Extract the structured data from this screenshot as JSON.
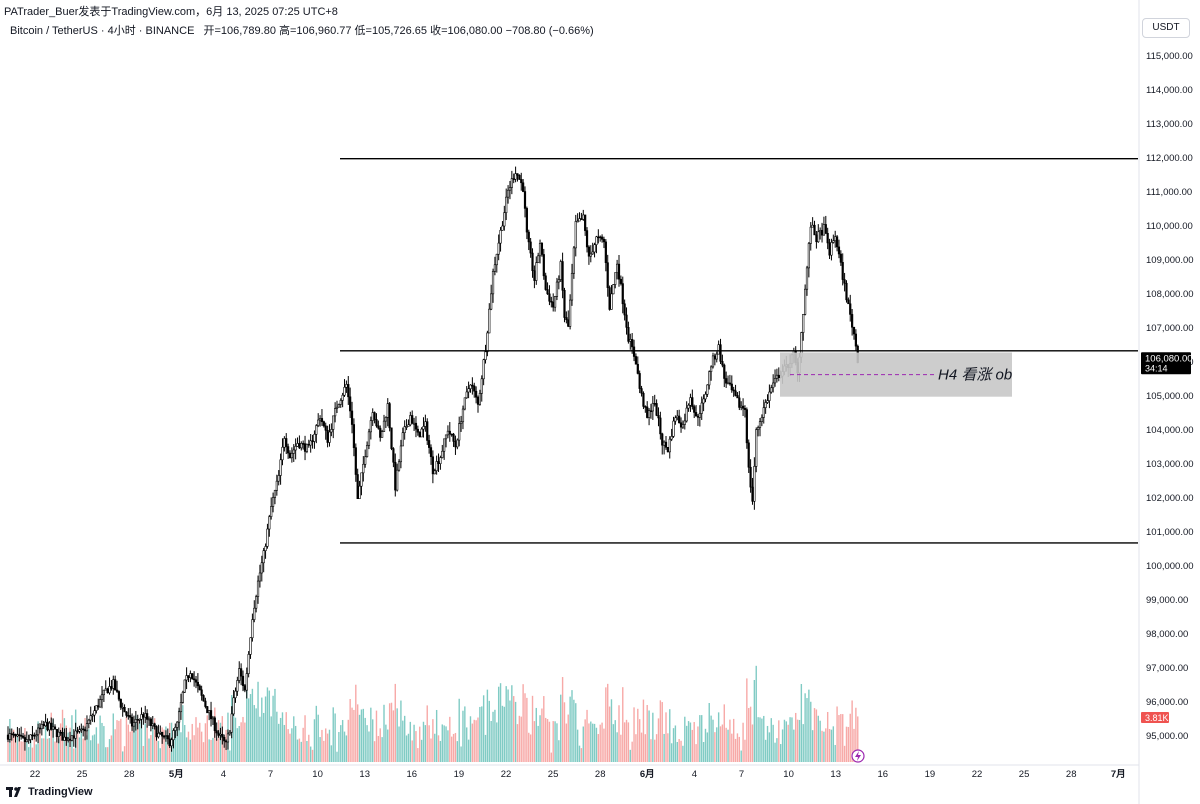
{
  "header": {
    "publisher": "PATrader_Buer发表于TradingView.com，6月 13, 2025 07:25 UTC+8"
  },
  "legend": {
    "symbol": "Bitcoin / TetherUS · 4小时 · BINANCE",
    "ohlc": "开=106,789.80  高=106,960.77  低=105,726.65  收=106,080.00  −708.80 (−0.66%)"
  },
  "currency_button": "USDT",
  "footer": {
    "logo_icon": "tradingview-logo-icon",
    "brand": "TradingView"
  },
  "colors": {
    "up": "#26a69a",
    "down": "#ef5350",
    "up_vol": "#80cbc4",
    "down_vol": "#f7a9a7",
    "ob_zone": "#c8c8c8",
    "level": "#000000"
  },
  "chart_data": {
    "type": "candlestick",
    "title": "",
    "ylim": [
      94200,
      115600
    ],
    "y_ticks": [
      "115,000.00",
      "114,000.00",
      "113,000.00",
      "112,000.00",
      "111,000.00",
      "110,000.00",
      "109,000.00",
      "108,000.00",
      "107,000.00",
      "106,000.00",
      "105,000.00",
      "104,000.00",
      "103,000.00",
      "102,000.00",
      "101,000.00",
      "100,000.00",
      "99,000.00",
      "98,000.00",
      "97,000.00",
      "96,000.00",
      "95,000.00"
    ],
    "x_ticks": [
      "22",
      "25",
      "28",
      "5月",
      "4",
      "7",
      "10",
      "13",
      "16",
      "19",
      "22",
      "25",
      "28",
      "6月",
      "4",
      "7",
      "10",
      "13",
      "16",
      "19",
      "22",
      "25",
      "28",
      "7月"
    ],
    "price_path": [
      [
        0,
        95000
      ],
      [
        10,
        94800
      ],
      [
        20,
        95300
      ],
      [
        30,
        94900
      ],
      [
        40,
        95100
      ],
      [
        46,
        95700
      ],
      [
        52,
        96300
      ],
      [
        56,
        96500
      ],
      [
        60,
        95900
      ],
      [
        66,
        95300
      ],
      [
        72,
        95600
      ],
      [
        80,
        95000
      ],
      [
        86,
        94800
      ],
      [
        90,
        95300
      ],
      [
        94,
        96500
      ],
      [
        97,
        96900
      ],
      [
        100,
        96500
      ],
      [
        104,
        96000
      ],
      [
        108,
        95500
      ],
      [
        112,
        95000
      ],
      [
        116,
        94700
      ],
      [
        118,
        95200
      ],
      [
        120,
        96000
      ],
      [
        123,
        96900
      ],
      [
        126,
        96300
      ],
      [
        130,
        98500
      ],
      [
        133,
        99500
      ],
      [
        136,
        100300
      ],
      [
        140,
        101700
      ],
      [
        144,
        102600
      ],
      [
        147,
        103800
      ],
      [
        150,
        103200
      ],
      [
        154,
        103600
      ],
      [
        160,
        103400
      ],
      [
        166,
        104400
      ],
      [
        170,
        103700
      ],
      [
        175,
        104700
      ],
      [
        180,
        105300
      ],
      [
        183,
        104200
      ],
      [
        186,
        101900
      ],
      [
        190,
        103300
      ],
      [
        194,
        104600
      ],
      [
        198,
        103700
      ],
      [
        202,
        104700
      ],
      [
        206,
        102300
      ],
      [
        210,
        103800
      ],
      [
        214,
        104400
      ],
      [
        218,
        103800
      ],
      [
        222,
        104100
      ],
      [
        226,
        102800
      ],
      [
        230,
        103200
      ],
      [
        234,
        104000
      ],
      [
        238,
        103500
      ],
      [
        242,
        104600
      ],
      [
        246,
        105400
      ],
      [
        250,
        104700
      ],
      [
        254,
        106400
      ],
      [
        256,
        107500
      ],
      [
        258,
        108600
      ],
      [
        262,
        109800
      ],
      [
        266,
        111000
      ],
      [
        270,
        111600
      ],
      [
        274,
        111100
      ],
      [
        276,
        109700
      ],
      [
        280,
        108400
      ],
      [
        283,
        109500
      ],
      [
        286,
        108100
      ],
      [
        290,
        107600
      ],
      [
        294,
        108800
      ],
      [
        296,
        107300
      ],
      [
        298,
        107000
      ],
      [
        302,
        110000
      ],
      [
        306,
        110200
      ],
      [
        309,
        109000
      ],
      [
        313,
        109600
      ],
      [
        317,
        109500
      ],
      [
        320,
        107600
      ],
      [
        324,
        108900
      ],
      [
        327,
        107800
      ],
      [
        330,
        106700
      ],
      [
        334,
        106000
      ],
      [
        336,
        105200
      ],
      [
        340,
        104300
      ],
      [
        343,
        104800
      ],
      [
        345,
        104500
      ],
      [
        348,
        103600
      ],
      [
        351,
        103400
      ],
      [
        355,
        104400
      ],
      [
        359,
        104100
      ],
      [
        363,
        105000
      ],
      [
        366,
        104300
      ],
      [
        370,
        104800
      ],
      [
        374,
        105900
      ],
      [
        378,
        106400
      ],
      [
        381,
        105500
      ],
      [
        385,
        105100
      ],
      [
        389,
        104700
      ],
      [
        392,
        104600
      ],
      [
        394,
        102800
      ],
      [
        396,
        101900
      ],
      [
        398,
        103900
      ],
      [
        402,
        104600
      ],
      [
        406,
        105200
      ],
      [
        410,
        105600
      ],
      [
        414,
        105800
      ],
      [
        418,
        106200
      ],
      [
        420,
        105600
      ],
      [
        424,
        108100
      ],
      [
        427,
        110000
      ],
      [
        430,
        109600
      ],
      [
        434,
        109900
      ],
      [
        437,
        109200
      ],
      [
        440,
        109700
      ],
      [
        444,
        108500
      ],
      [
        447,
        107600
      ],
      [
        450,
        106800
      ],
      [
        452,
        106080
      ]
    ],
    "candles_note": "4-hour candles from 04-21 to 06-13 UTC+8 (x axis in candle index, 6 candles per day)",
    "key_levels": [
      {
        "price": 111950,
        "from_date": "11",
        "to": "right_edge"
      },
      {
        "price": 106300,
        "from_date": "11",
        "to": "right_edge"
      },
      {
        "price": 100650,
        "from_date": "11",
        "to": "right_edge"
      }
    ],
    "zone": {
      "label": "H4 看涨 ob",
      "low": 104950,
      "high": 106250,
      "mid": 105600
    },
    "last_price": {
      "value": "106,080.00",
      "countdown": "34:14"
    },
    "last_volume": "3.81K"
  }
}
